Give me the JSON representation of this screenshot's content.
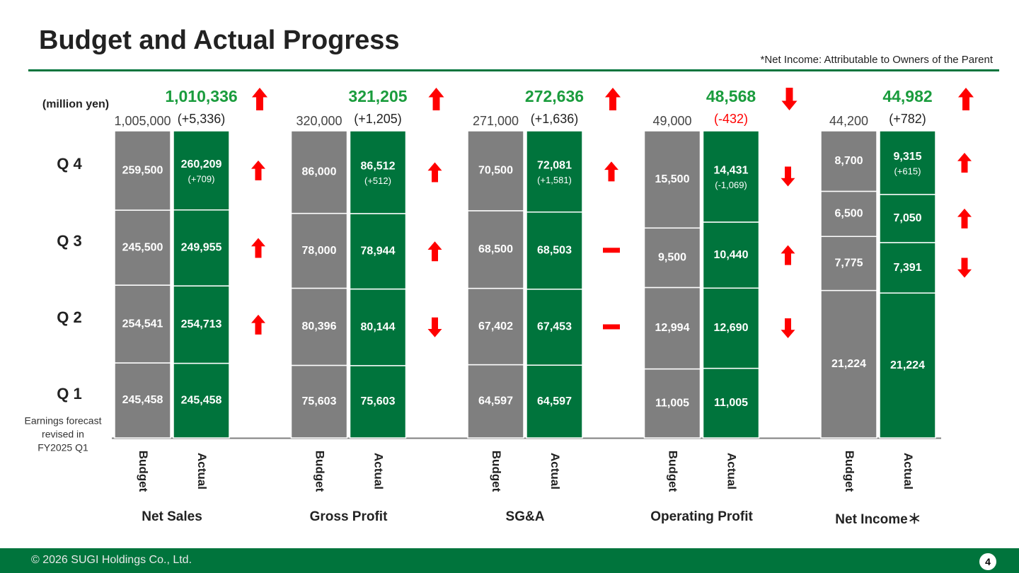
{
  "title": "Budget and Actual Progress",
  "note": "*Net Income: Attributable to Owners of the Parent",
  "footer": {
    "copyright": "© 2026 SUGI Holdings Co., Ltd.",
    "page": "4"
  },
  "colors": {
    "budget": "#7f7f7f",
    "actual": "#00743c",
    "up": "#ff0000",
    "down": "#ff0000",
    "total_text": "#1a9c3d",
    "title_rule": "#00743c"
  },
  "chart_data": {
    "type": "bar",
    "stacked": true,
    "unit_label": "(million yen)",
    "quarters": [
      "Q 1",
      "Q 2",
      "Q 3",
      "Q 4"
    ],
    "side_note": [
      "Earnings forecast",
      "revised in",
      "FY2025 Q1"
    ],
    "bar_labels": {
      "budget": "Budget",
      "actual": "Actual"
    },
    "groups": [
      {
        "name": "Net Sales",
        "budget_total": "1,005,000",
        "actual_total": "1,010,336",
        "diff": "(+5,336)",
        "total_trend": "up",
        "budget": [
          245458,
          254541,
          245500,
          259500
        ],
        "actual": [
          245458,
          254713,
          249955,
          260209
        ],
        "budget_labels": [
          "245,458",
          "254,541",
          "245,500",
          "259,500"
        ],
        "actual_labels": [
          "245,458",
          "254,713",
          "249,955",
          "260,209"
        ],
        "actual_subs": [
          "",
          "",
          "",
          "(+709)"
        ],
        "trends": [
          "",
          "up",
          "up",
          "up"
        ]
      },
      {
        "name": "Gross Profit",
        "budget_total": "320,000",
        "actual_total": "321,205",
        "diff": "(+1,205)",
        "total_trend": "up",
        "budget": [
          75603,
          80396,
          78000,
          86000
        ],
        "actual": [
          75603,
          80144,
          78944,
          86512
        ],
        "budget_labels": [
          "75,603",
          "80,396",
          "78,000",
          "86,000"
        ],
        "actual_labels": [
          "75,603",
          "80,144",
          "78,944",
          "86,512"
        ],
        "actual_subs": [
          "",
          "",
          "",
          "(+512)"
        ],
        "trends": [
          "",
          "down",
          "up",
          "up"
        ]
      },
      {
        "name": "SG&A",
        "budget_total": "271,000",
        "actual_total": "272,636",
        "diff": "(+1,636)",
        "total_trend": "up",
        "budget": [
          64597,
          67402,
          68500,
          70500
        ],
        "actual": [
          64597,
          67453,
          68503,
          72081
        ],
        "budget_labels": [
          "64,597",
          "67,402",
          "68,500",
          "70,500"
        ],
        "actual_labels": [
          "64,597",
          "67,453",
          "68,503",
          "72,081"
        ],
        "actual_subs": [
          "",
          "",
          "",
          "(+1,581)"
        ],
        "trends": [
          "",
          "flat",
          "flat",
          "up"
        ]
      },
      {
        "name": "Operating Profit",
        "budget_total": "49,000",
        "actual_total": "48,568",
        "diff": "(-432)",
        "total_trend": "down",
        "budget": [
          11005,
          12994,
          9500,
          15500
        ],
        "actual": [
          11005,
          12690,
          10440,
          14431
        ],
        "budget_labels": [
          "11,005",
          "12,994",
          "9,500",
          "15,500"
        ],
        "actual_labels": [
          "11,005",
          "12,690",
          "10,440",
          "14,431"
        ],
        "actual_subs": [
          "",
          "",
          "",
          "(-1,069)"
        ],
        "trends": [
          "",
          "down",
          "up",
          "down"
        ]
      },
      {
        "name": "Net Income＊",
        "budget_total": "44,200",
        "actual_total": "44,982",
        "diff": "(+782)",
        "total_trend": "up",
        "budget": [
          21224,
          7775,
          6500,
          8700
        ],
        "actual": [
          21224,
          7391,
          7050,
          9315
        ],
        "budget_labels": [
          "21,224",
          "7,775",
          "6,500",
          "8,700"
        ],
        "actual_labels": [
          "21,224",
          "7,391",
          "7,050",
          "9,315"
        ],
        "actual_subs": [
          "",
          "",
          "",
          "(+615)"
        ],
        "trends": [
          "",
          "down",
          "up",
          "up"
        ]
      }
    ]
  }
}
